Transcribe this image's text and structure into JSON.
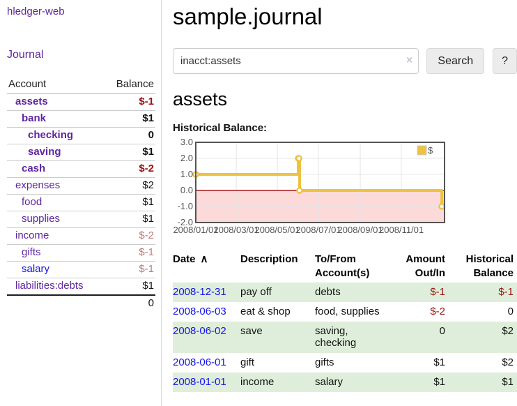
{
  "brand": {
    "label": "hledger-web"
  },
  "nav": {
    "journal": "Journal"
  },
  "sidebar": {
    "header": {
      "account": "Account",
      "balance": "Balance"
    },
    "accounts": [
      {
        "name": "assets",
        "indent": 1,
        "bold": true,
        "balance": "$-1",
        "neg": "strong"
      },
      {
        "name": "bank",
        "indent": 2,
        "bold": true,
        "balance": "$1",
        "neg": "none"
      },
      {
        "name": "checking",
        "indent": 3,
        "bold": true,
        "balance": "0",
        "neg": "none"
      },
      {
        "name": "saving",
        "indent": 3,
        "bold": true,
        "balance": "$1",
        "neg": "none"
      },
      {
        "name": "cash",
        "indent": 2,
        "bold": true,
        "balance": "$-2",
        "neg": "strong"
      },
      {
        "name": "expenses",
        "indent": 1,
        "bold": false,
        "balance": "$2",
        "neg": "none"
      },
      {
        "name": "food",
        "indent": 2,
        "bold": false,
        "balance": "$1",
        "neg": "none"
      },
      {
        "name": "supplies",
        "indent": 2,
        "bold": false,
        "balance": "$1",
        "neg": "none"
      },
      {
        "name": "income",
        "indent": 1,
        "bold": false,
        "balance": "$-2",
        "neg": "soft"
      },
      {
        "name": "gifts",
        "indent": 2,
        "bold": false,
        "balance": "$-1",
        "neg": "soft"
      },
      {
        "name": "salary",
        "indent": 2,
        "bold": false,
        "balance": "$-1",
        "neg": "soft",
        "link": "blue"
      },
      {
        "name": "liabilities:debts",
        "indent": 1,
        "bold": false,
        "balance": "$1",
        "neg": "none"
      }
    ],
    "total": "0"
  },
  "main": {
    "title": "sample.journal",
    "search": {
      "value": "inacct:assets",
      "clear": "×",
      "button": "Search",
      "help": "?"
    },
    "heading": "assets",
    "chart_title": "Historical Balance:"
  },
  "chart_data": {
    "type": "line",
    "title": "Historical Balance",
    "series": [
      {
        "name": "$",
        "color": "#edc240",
        "points": [
          [
            "2008-01-01",
            1
          ],
          [
            "2008-06-01",
            2
          ],
          [
            "2008-06-02",
            2
          ],
          [
            "2008-06-03",
            0
          ],
          [
            "2008-12-31",
            -1
          ]
        ],
        "step": true,
        "markers": true
      }
    ],
    "x_start": "2008-01-01",
    "x_end_days": 369,
    "x_ticks": [
      "2008/01/01",
      "2008/03/01",
      "2008/05/01",
      "2008/07/01",
      "2008/09/01",
      "2008/11/01"
    ],
    "y_ticks": [
      "3.0",
      "2.0",
      "1.0",
      "0.0",
      "-1.0",
      "-2.0"
    ],
    "ylim": [
      -2,
      3
    ],
    "grid": true,
    "legend": {
      "label": "$",
      "position": "top-right"
    },
    "border_color": "#545454",
    "grid_color": "#e4e4e4",
    "negative_region_color": "#fcdada",
    "zero_line_color": "#a31818",
    "marker_fill": "#ffffff"
  },
  "register": {
    "headers": {
      "date": "Date",
      "sort_icon": "∧",
      "description": "Description",
      "accounts": "To/From\nAccount(s)",
      "amount": "Amount\nOut/In",
      "balance": "Historical\nBalance"
    },
    "rows": [
      {
        "date": "2008-12-31",
        "description": "pay off",
        "accounts": "debts",
        "amount": "$-1",
        "balance": "$-1",
        "amount_neg": true,
        "balance_neg": true,
        "shade": true
      },
      {
        "date": "2008-06-03",
        "description": "eat & shop",
        "accounts": "food, supplies",
        "amount": "$-2",
        "balance": "0",
        "amount_neg": true,
        "balance_neg": false,
        "shade": false
      },
      {
        "date": "2008-06-02",
        "description": "save",
        "accounts": "saving,\nchecking",
        "amount": "0",
        "balance": "$2",
        "amount_neg": false,
        "balance_neg": false,
        "shade": true
      },
      {
        "date": "2008-06-01",
        "description": "gift",
        "accounts": "gifts",
        "amount": "$1",
        "balance": "$2",
        "amount_neg": false,
        "balance_neg": false,
        "shade": false
      },
      {
        "date": "2008-01-01",
        "description": "income",
        "accounts": "salary",
        "amount": "$1",
        "balance": "$1",
        "amount_neg": false,
        "balance_neg": false,
        "shade": true
      }
    ]
  },
  "colors": {
    "accent_purple": "#5f26a0",
    "link_blue": "#1414e8",
    "neg_strong": "#991111",
    "neg_soft": "#bd7b7b",
    "row_green": "#dfeeda",
    "chart_gold": "#edc240"
  }
}
